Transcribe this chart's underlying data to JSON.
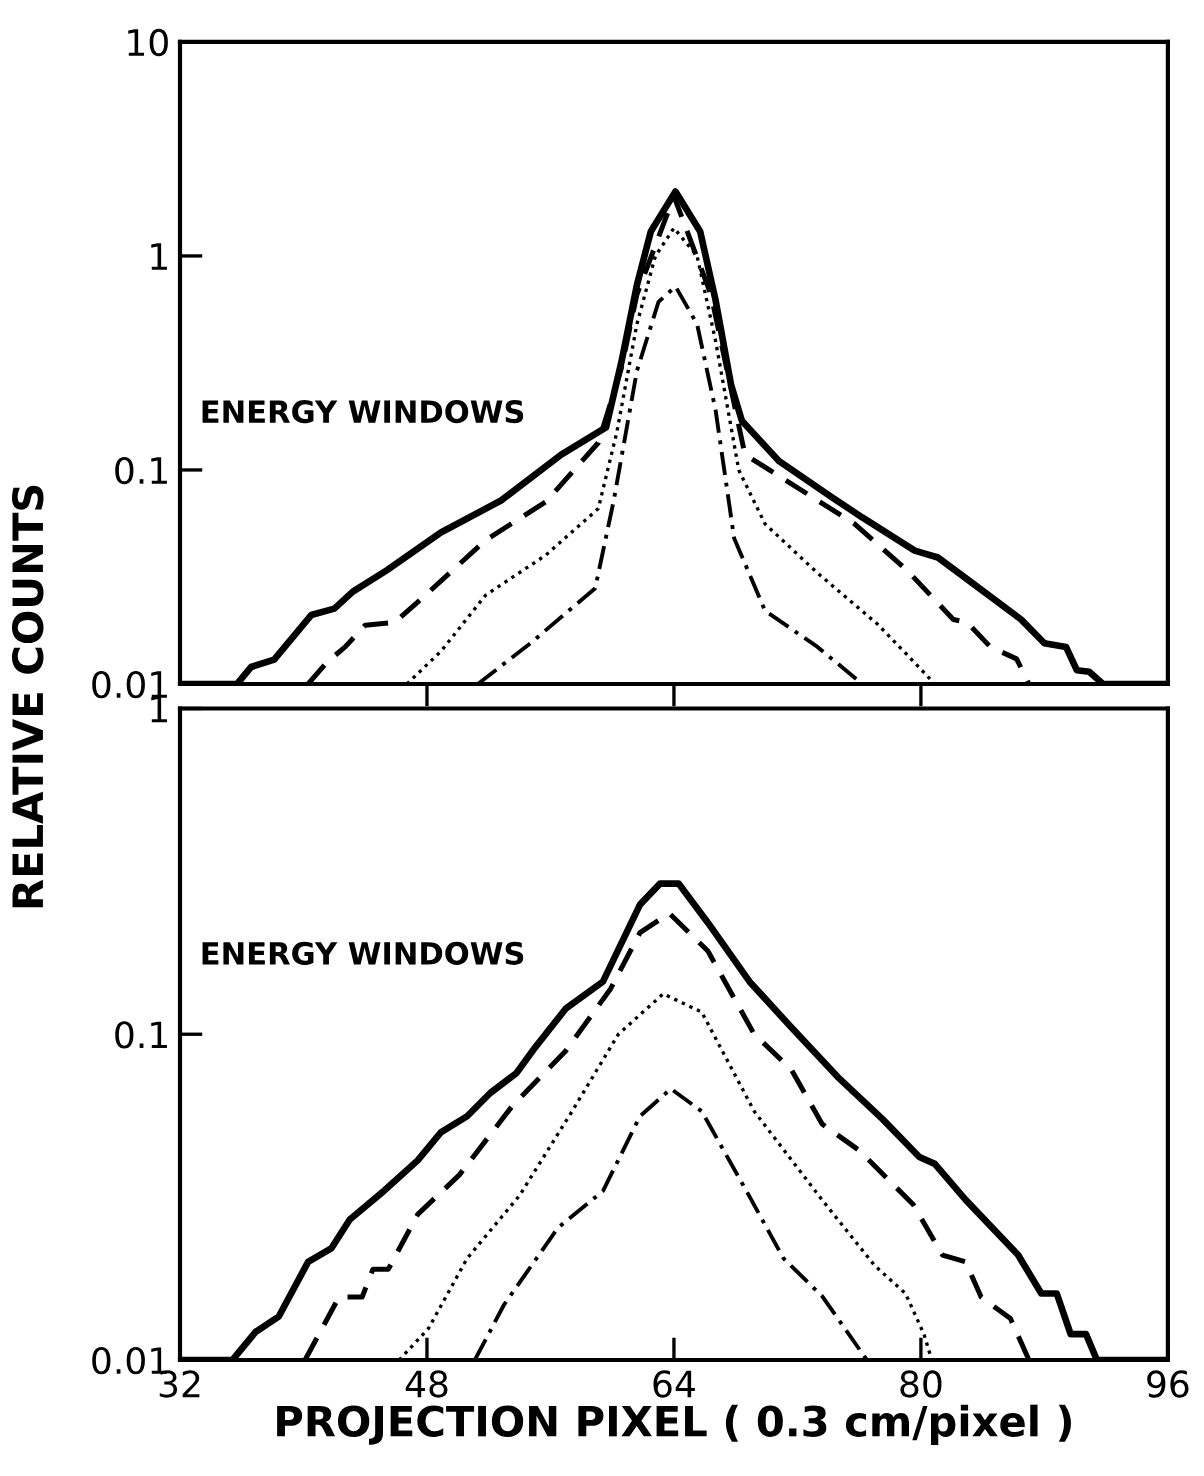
{
  "chart_data": [
    {
      "type": "line",
      "ylabel": "RELATIVE COUNTS",
      "log": "y",
      "xlim": [
        32,
        96
      ],
      "ylim": [
        0.01,
        10
      ],
      "xticks": [
        {
          "value": 48,
          "label": null
        },
        {
          "value": 64,
          "label": null
        },
        {
          "value": 80,
          "label": null
        }
      ],
      "yticks": [
        0.01,
        0.1,
        1,
        10
      ],
      "tick_labels": "y",
      "grid": false,
      "marker": "none",
      "annotations": [
        "ENERGY WINDOWS"
      ],
      "series": [
        {
          "color": "#000000",
          "line_style": "solid",
          "x": [
            32,
            35.7,
            36.6,
            38.1,
            40.5,
            42.0,
            43.2,
            45.4,
            48.9,
            52.8,
            56.7,
            59.6,
            60.6,
            61.6,
            62.5,
            64.1,
            65.7,
            66.7,
            67.7,
            68.4,
            70.8,
            74.3,
            76.2,
            79.6,
            81.1,
            83.5,
            86.5,
            88.0,
            89.4,
            90.1,
            90.9,
            91.8,
            96
          ],
          "values": [
            0.01,
            0.01,
            0.012,
            0.013,
            0.021,
            0.0225,
            0.027,
            0.034,
            0.051,
            0.072,
            0.118,
            0.158,
            0.32,
            0.73,
            1.3,
            2.0,
            1.3,
            0.62,
            0.25,
            0.17,
            0.11,
            0.074,
            0.06,
            0.042,
            0.039,
            0.029,
            0.02,
            0.0155,
            0.0149,
            0.0116,
            0.0114,
            0.01,
            0.01
          ]
        },
        {
          "color": "#000000",
          "line_style": "dashed",
          "x": [
            40.3,
            41.5,
            42.7,
            44.0,
            45.9,
            47.9,
            51.8,
            55.7,
            59.1,
            60.6,
            61.6,
            64.0,
            66.4,
            68.6,
            71.3,
            75.7,
            79.1,
            82.1,
            83.0,
            84.5,
            86.2,
            87.0
          ],
          "values": [
            0.01,
            0.0126,
            0.0149,
            0.0188,
            0.0194,
            0.026,
            0.047,
            0.071,
            0.134,
            0.3,
            0.66,
            1.9,
            0.66,
            0.118,
            0.089,
            0.056,
            0.034,
            0.02,
            0.0194,
            0.0149,
            0.0131,
            0.01
          ]
        },
        {
          "color": "#000000",
          "line_style": "dotted",
          "x": [
            46.7,
            48.9,
            51.8,
            55.7,
            59.1,
            60.3,
            61.6,
            62.8,
            64.0,
            65.5,
            66.7,
            68.2,
            69.9,
            73.3,
            77.2,
            79.1,
            80.9
          ],
          "values": [
            0.01,
            0.0142,
            0.026,
            0.04,
            0.066,
            0.15,
            0.48,
            1.0,
            1.35,
            1.0,
            0.4,
            0.1,
            0.056,
            0.033,
            0.019,
            0.0137,
            0.01
          ]
        },
        {
          "color": "#000000",
          "line_style": "dashdot",
          "x": [
            51.3,
            54.7,
            58.9,
            60.1,
            61.6,
            63.0,
            64.1,
            65.5,
            66.7,
            67.9,
            69.9,
            73.3,
            76.2
          ],
          "values": [
            0.01,
            0.0155,
            0.028,
            0.072,
            0.29,
            0.61,
            0.72,
            0.48,
            0.19,
            0.048,
            0.022,
            0.0149,
            0.01
          ]
        }
      ]
    },
    {
      "type": "line",
      "xlabel": "PROJECTION PIXEL ( 0.3 cm/pixel )",
      "log": "y",
      "xlim": [
        32,
        96
      ],
      "ylim": [
        0.01,
        1
      ],
      "xticks": [
        32,
        48,
        64,
        80,
        96
      ],
      "yticks": [
        0.01,
        0.1,
        1
      ],
      "grid": false,
      "marker": "none",
      "annotations": [
        "ENERGY WINDOWS"
      ],
      "series": [
        {
          "color": "#000000",
          "line_style": "solid",
          "x": [
            32,
            35.4,
            36.9,
            38.4,
            40.3,
            41.8,
            43.0,
            45.2,
            47.4,
            48.9,
            50.6,
            52.1,
            53.8,
            55.0,
            57.0,
            59.4,
            61.8,
            63.1,
            64.3,
            66.2,
            68.9,
            71.6,
            74.6,
            77.5,
            79.9,
            80.9,
            82.9,
            86.3,
            87.8,
            88.8,
            89.7,
            90.7,
            91.4,
            96
          ],
          "values": [
            0.01,
            0.01,
            0.0122,
            0.0136,
            0.02,
            0.022,
            0.027,
            0.033,
            0.041,
            0.05,
            0.056,
            0.066,
            0.076,
            0.091,
            0.12,
            0.145,
            0.25,
            0.29,
            0.29,
            0.22,
            0.145,
            0.105,
            0.074,
            0.055,
            0.042,
            0.04,
            0.031,
            0.021,
            0.016,
            0.016,
            0.012,
            0.012,
            0.01,
            0.01
          ]
        },
        {
          "color": "#000000",
          "line_style": "dashed",
          "x": [
            40.1,
            42.3,
            43.8,
            44.5,
            45.5,
            47.4,
            50.1,
            53.5,
            57.0,
            59.9,
            61.8,
            63.7,
            66.2,
            69.2,
            71.6,
            73.6,
            76.0,
            79.5,
            81.4,
            82.9,
            83.9,
            85.8,
            87.0
          ],
          "values": [
            0.01,
            0.0156,
            0.0156,
            0.019,
            0.019,
            0.028,
            0.037,
            0.06,
            0.089,
            0.138,
            0.205,
            0.235,
            0.18,
            0.1,
            0.078,
            0.053,
            0.044,
            0.03,
            0.021,
            0.02,
            0.0156,
            0.0134,
            0.01
          ]
        },
        {
          "color": "#000000",
          "line_style": "dotted",
          "x": [
            46.2,
            48.1,
            50.6,
            54.0,
            57.4,
            60.4,
            63.3,
            65.8,
            69.2,
            73.6,
            77.0,
            79.0,
            80.2,
            80.7
          ],
          "values": [
            0.01,
            0.0125,
            0.0205,
            0.032,
            0.058,
            0.1,
            0.133,
            0.117,
            0.058,
            0.031,
            0.0195,
            0.016,
            0.012,
            0.01
          ]
        },
        {
          "color": "#000000",
          "line_style": "dashdot",
          "x": [
            51.1,
            53.0,
            56.5,
            59.4,
            61.8,
            63.8,
            65.8,
            68.7,
            71.1,
            73.6,
            76.5
          ],
          "values": [
            0.01,
            0.0148,
            0.0255,
            0.033,
            0.056,
            0.068,
            0.058,
            0.033,
            0.0205,
            0.0157,
            0.01
          ]
        }
      ]
    }
  ]
}
